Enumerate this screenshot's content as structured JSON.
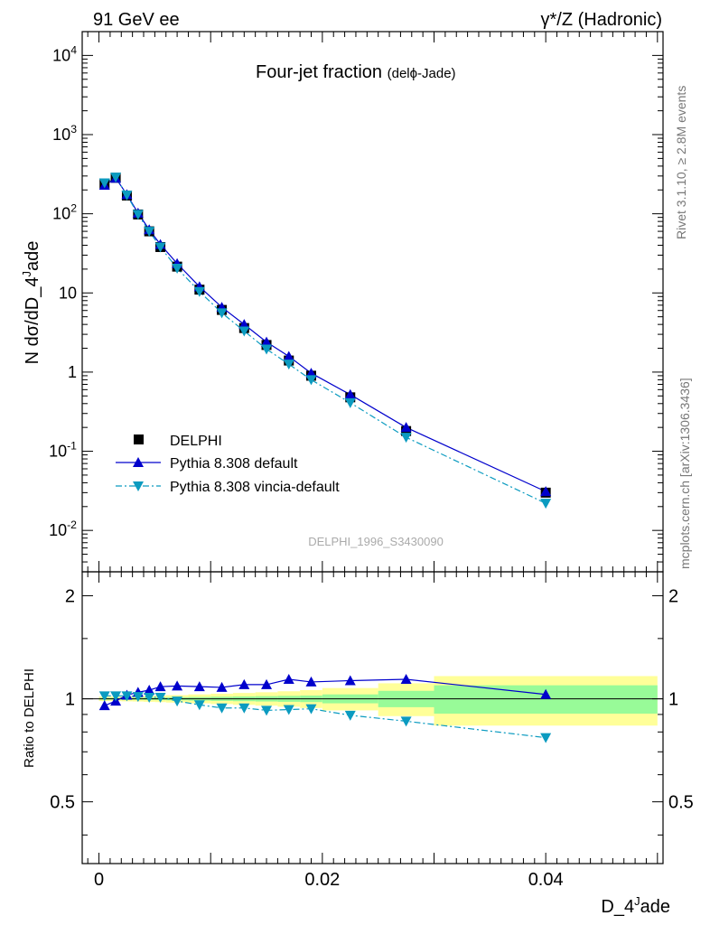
{
  "header": {
    "left": "91 GeV ee",
    "right": "γ*/Z (Hadronic)"
  },
  "side_labels": {
    "rivet": "Rivet 3.1.10, ≥ 2.8M events",
    "mcplots": "mcplots.cern.ch [arXiv:1306.3436]"
  },
  "chart_data": [
    {
      "type": "scatter",
      "panel": "main",
      "title": "Four-jet fraction",
      "title_suffix": "(delϕ-Jade)",
      "watermark": "DELPHI_1996_S3430090",
      "ylabel": "N dσ/dD_4^Jade",
      "yscale": "log",
      "ylim": [
        0.003,
        20000
      ],
      "xlim": [
        -0.0015,
        0.0505
      ],
      "ytick_labels": [
        "10^-2",
        "10^-1",
        "1",
        "10",
        "10^2",
        "10^3",
        "10^4"
      ],
      "legend_position": "lower-left",
      "legend": [
        "DELPHI",
        "Pythia 8.308 default",
        "Pythia 8.308 vincia-default"
      ],
      "x": [
        0.0005,
        0.0015,
        0.0025,
        0.0035,
        0.0045,
        0.0055,
        0.007,
        0.009,
        0.011,
        0.013,
        0.015,
        0.017,
        0.019,
        0.0225,
        0.0275,
        0.04
      ],
      "series": [
        {
          "name": "DELPHI",
          "marker": "square",
          "color": "#000000",
          "values": [
            240,
            285,
            170,
            98,
            60,
            38,
            21.5,
            11,
            6.1,
            3.6,
            2.2,
            1.4,
            0.9,
            0.48,
            0.18,
            0.03
          ]
        },
        {
          "name": "Pythia 8.308 default",
          "marker": "triangle-up",
          "line": "solid",
          "color": "#0000cc",
          "values": [
            230,
            282,
            175,
            102,
            63,
            41,
            23.5,
            12,
            6.6,
            4.0,
            2.4,
            1.58,
            0.97,
            0.52,
            0.2,
            0.031
          ]
        },
        {
          "name": "Pythia 8.308 vincia-default",
          "marker": "triangle-down",
          "line": "dash-dot",
          "color": "#0b9bc0",
          "values": [
            245,
            290,
            172,
            98,
            60,
            38,
            20.5,
            10.4,
            5.6,
            3.3,
            1.95,
            1.26,
            0.8,
            0.41,
            0.15,
            0.022
          ]
        }
      ]
    },
    {
      "type": "scatter",
      "panel": "ratio",
      "ylabel": "Ratio to DELPHI",
      "xlabel": "D_4^Jade",
      "ylim": [
        0.33,
        2.35
      ],
      "yscale": "log",
      "ytick_labels": [
        "0.5",
        "1",
        "2"
      ],
      "xtick_labels": [
        "0",
        "0.02",
        "0.04"
      ],
      "x": [
        0.0005,
        0.0015,
        0.0025,
        0.0035,
        0.0045,
        0.0055,
        0.007,
        0.009,
        0.011,
        0.013,
        0.015,
        0.017,
        0.019,
        0.0225,
        0.0275,
        0.04
      ],
      "bands": {
        "bin_edges": [
          0,
          0.001,
          0.002,
          0.003,
          0.004,
          0.005,
          0.006,
          0.008,
          0.01,
          0.012,
          0.014,
          0.016,
          0.018,
          0.02,
          0.025,
          0.03,
          0.05
        ],
        "inner_half_width": [
          0.006,
          0.006,
          0.007,
          0.007,
          0.008,
          0.009,
          0.01,
          0.012,
          0.014,
          0.016,
          0.018,
          0.02,
          0.022,
          0.03,
          0.055,
          0.095
        ],
        "outer_half_width": [
          0.015,
          0.015,
          0.017,
          0.018,
          0.02,
          0.022,
          0.025,
          0.03,
          0.035,
          0.04,
          0.045,
          0.052,
          0.06,
          0.075,
          0.11,
          0.165
        ],
        "inner_color": "#98fb98",
        "outer_color": "#ffff99"
      },
      "series": [
        {
          "name": "Pythia 8.308 default",
          "color": "#0000cc",
          "values": [
            0.955,
            0.985,
            1.025,
            1.045,
            1.06,
            1.085,
            1.09,
            1.085,
            1.08,
            1.1,
            1.1,
            1.14,
            1.12,
            1.13,
            1.14,
            1.03
          ]
        },
        {
          "name": "Pythia 8.308 vincia-default",
          "color": "#0b9bc0",
          "values": [
            1.02,
            1.02,
            1.02,
            1.015,
            1.01,
            1.01,
            0.985,
            0.96,
            0.94,
            0.94,
            0.925,
            0.93,
            0.935,
            0.895,
            0.86,
            0.77
          ]
        }
      ]
    }
  ]
}
